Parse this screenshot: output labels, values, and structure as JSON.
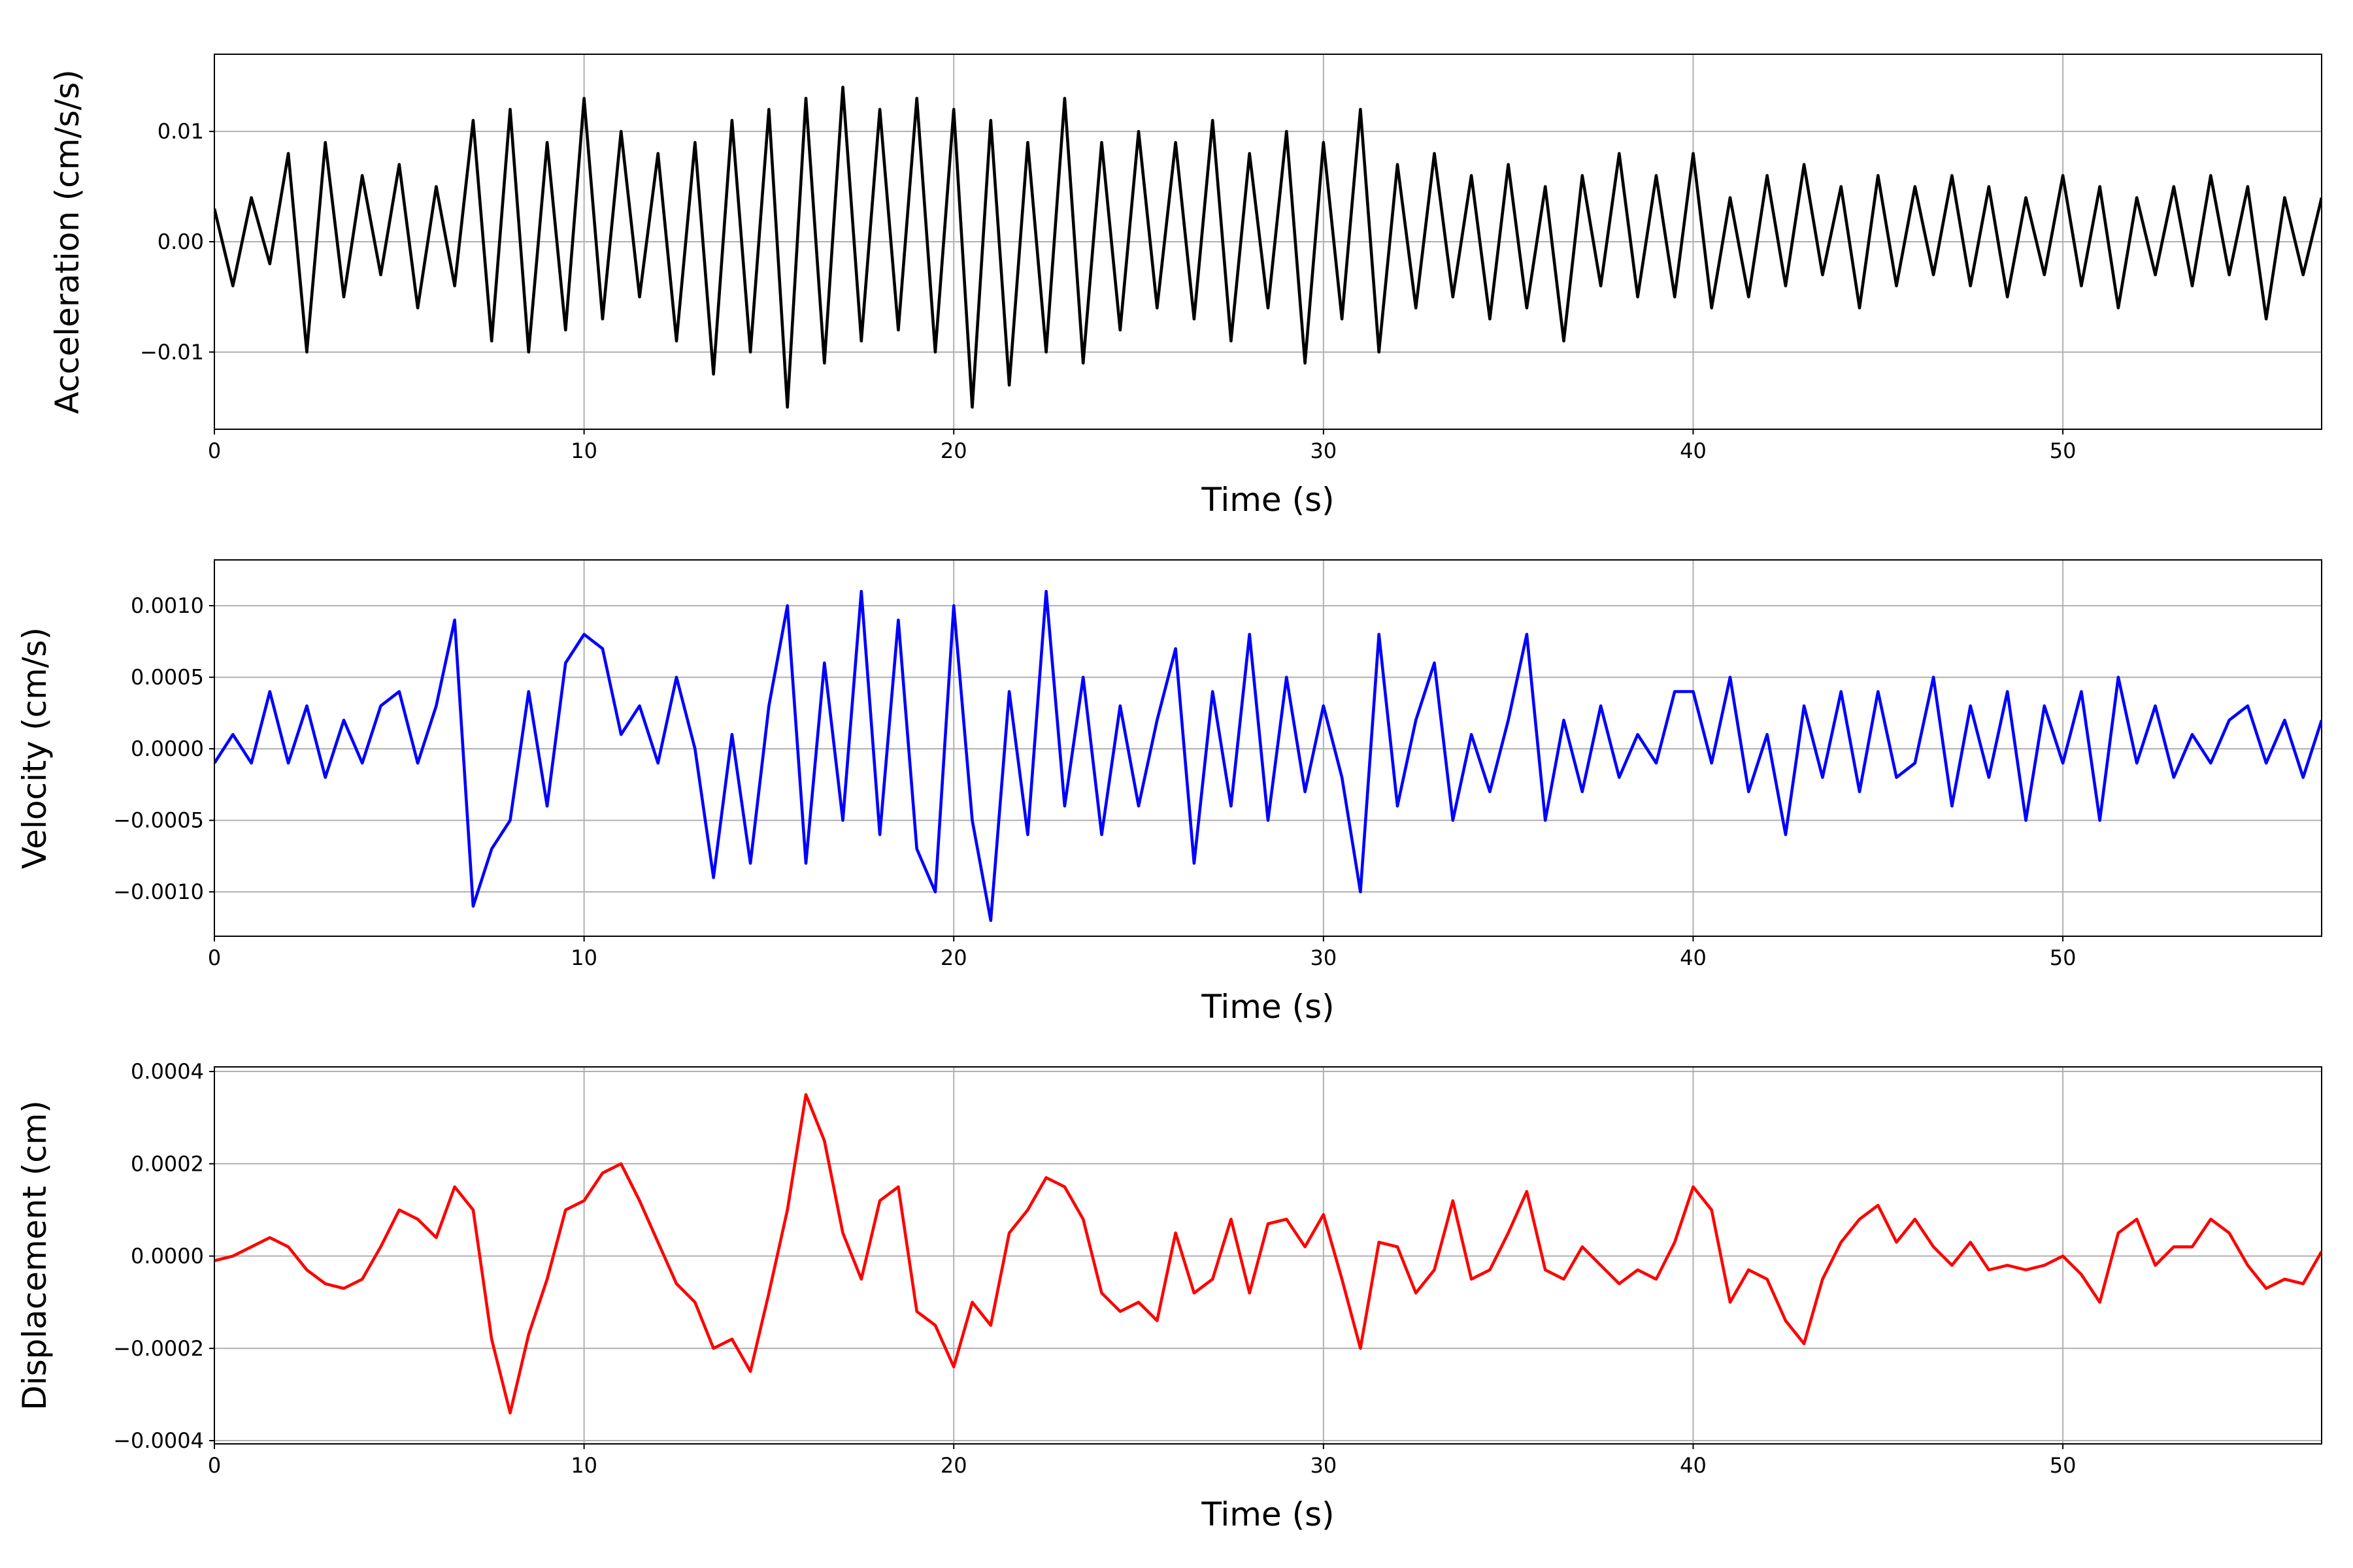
{
  "chart_data": [
    {
      "type": "line",
      "color": "#000000",
      "xlabel": "Time (s)",
      "ylabel": "Acceleration (cm/s/s)",
      "grid": true,
      "xlim": [
        0,
        57
      ],
      "xticks": [
        0,
        10,
        20,
        30,
        40,
        50
      ],
      "ylim": [
        -0.017,
        0.017
      ],
      "yticks": [
        {
          "value": -0.01,
          "label": "−0.01"
        },
        {
          "value": 0,
          "label": "0.00"
        },
        {
          "value": 0.01,
          "label": "0.01"
        }
      ],
      "x": [
        0,
        0.5,
        1,
        1.5,
        2,
        2.5,
        3,
        3.5,
        4,
        4.5,
        5,
        5.5,
        6,
        6.5,
        7,
        7.5,
        8,
        8.5,
        9,
        9.5,
        10,
        10.5,
        11,
        11.5,
        12,
        12.5,
        13,
        13.5,
        14,
        14.5,
        15,
        15.5,
        16,
        16.5,
        17,
        17.5,
        18,
        18.5,
        19,
        19.5,
        20,
        20.5,
        21,
        21.5,
        22,
        22.5,
        23,
        23.5,
        24,
        24.5,
        25,
        25.5,
        26,
        26.5,
        27,
        27.5,
        28,
        28.5,
        29,
        29.5,
        30,
        30.5,
        31,
        31.5,
        32,
        32.5,
        33,
        33.5,
        34,
        34.5,
        35,
        35.5,
        36,
        36.5,
        37,
        37.5,
        38,
        38.5,
        39,
        39.5,
        40,
        40.5,
        41,
        41.5,
        42,
        42.5,
        43,
        43.5,
        44,
        44.5,
        45,
        45.5,
        46,
        46.5,
        47,
        47.5,
        48,
        48.5,
        49,
        49.5,
        50,
        50.5,
        51,
        51.5,
        52,
        52.5,
        53,
        53.5,
        54,
        54.5,
        55,
        55.5,
        56,
        56.5,
        57
      ],
      "values": [
        0.003,
        -0.004,
        0.004,
        -0.002,
        0.008,
        -0.01,
        0.009,
        -0.005,
        0.006,
        -0.003,
        0.007,
        -0.006,
        0.005,
        -0.004,
        0.011,
        -0.009,
        0.012,
        -0.01,
        0.009,
        -0.008,
        0.013,
        -0.007,
        0.01,
        -0.005,
        0.008,
        -0.009,
        0.009,
        -0.012,
        0.011,
        -0.01,
        0.012,
        -0.015,
        0.013,
        -0.011,
        0.014,
        -0.009,
        0.012,
        -0.008,
        0.013,
        -0.01,
        0.012,
        -0.015,
        0.011,
        -0.013,
        0.009,
        -0.01,
        0.013,
        -0.011,
        0.009,
        -0.008,
        0.01,
        -0.006,
        0.009,
        -0.007,
        0.011,
        -0.009,
        0.008,
        -0.006,
        0.01,
        -0.011,
        0.009,
        -0.007,
        0.012,
        -0.01,
        0.007,
        -0.006,
        0.008,
        -0.005,
        0.006,
        -0.007,
        0.007,
        -0.006,
        0.005,
        -0.009,
        0.006,
        -0.004,
        0.008,
        -0.005,
        0.006,
        -0.005,
        0.008,
        -0.006,
        0.004,
        -0.005,
        0.006,
        -0.004,
        0.007,
        -0.003,
        0.005,
        -0.006,
        0.006,
        -0.004,
        0.005,
        -0.003,
        0.006,
        -0.004,
        0.005,
        -0.005,
        0.004,
        -0.003,
        0.006,
        -0.004,
        0.005,
        -0.006,
        0.004,
        -0.003,
        0.005,
        -0.004,
        0.006,
        -0.003,
        0.005,
        -0.007,
        0.004,
        -0.003,
        0.004
      ]
    },
    {
      "type": "line",
      "color": "#0000ff",
      "xlabel": "Time (s)",
      "ylabel": "Velocity (cm/s)",
      "grid": true,
      "xlim": [
        0,
        57
      ],
      "xticks": [
        0,
        10,
        20,
        30,
        40,
        50
      ],
      "ylim": [
        -0.00131,
        0.00132
      ],
      "yticks": [
        {
          "value": -0.001,
          "label": "−0.0010"
        },
        {
          "value": -0.0005,
          "label": "−0.0005"
        },
        {
          "value": 0,
          "label": "0.0000"
        },
        {
          "value": 0.0005,
          "label": "0.0005"
        },
        {
          "value": 0.001,
          "label": "0.0010"
        }
      ],
      "x": [
        0,
        0.5,
        1,
        1.5,
        2,
        2.5,
        3,
        3.5,
        4,
        4.5,
        5,
        5.5,
        6,
        6.5,
        7,
        7.5,
        8,
        8.5,
        9,
        9.5,
        10,
        10.5,
        11,
        11.5,
        12,
        12.5,
        13,
        13.5,
        14,
        14.5,
        15,
        15.5,
        16,
        16.5,
        17,
        17.5,
        18,
        18.5,
        19,
        19.5,
        20,
        20.5,
        21,
        21.5,
        22,
        22.5,
        23,
        23.5,
        24,
        24.5,
        25,
        25.5,
        26,
        26.5,
        27,
        27.5,
        28,
        28.5,
        29,
        29.5,
        30,
        30.5,
        31,
        31.5,
        32,
        32.5,
        33,
        33.5,
        34,
        34.5,
        35,
        35.5,
        36,
        36.5,
        37,
        37.5,
        38,
        38.5,
        39,
        39.5,
        40,
        40.5,
        41,
        41.5,
        42,
        42.5,
        43,
        43.5,
        44,
        44.5,
        45,
        45.5,
        46,
        46.5,
        47,
        47.5,
        48,
        48.5,
        49,
        49.5,
        50,
        50.5,
        51,
        51.5,
        52,
        52.5,
        53,
        53.5,
        54,
        54.5,
        55,
        55.5,
        56,
        56.5,
        57
      ],
      "values": [
        -0.0001,
        0.0001,
        -0.0001,
        0.0004,
        -0.0001,
        0.0003,
        -0.0002,
        0.0002,
        -0.0001,
        0.0003,
        0.0004,
        -0.0001,
        0.0003,
        0.0009,
        -0.0011,
        -0.0007,
        -0.0005,
        0.0004,
        -0.0004,
        0.0006,
        0.0008,
        0.0007,
        0.0001,
        0.0003,
        -0.0001,
        0.0005,
        0,
        -0.0009,
        0.0001,
        -0.0008,
        0.0003,
        0.001,
        -0.0008,
        0.0006,
        -0.0005,
        0.0011,
        -0.0006,
        0.0009,
        -0.0007,
        -0.001,
        0.001,
        -0.0005,
        -0.0012,
        0.0004,
        -0.0006,
        0.0011,
        -0.0004,
        0.0005,
        -0.0006,
        0.0003,
        -0.0004,
        0.0002,
        0.0007,
        -0.0008,
        0.0004,
        -0.0004,
        0.0008,
        -0.0005,
        0.0005,
        -0.0003,
        0.0003,
        -0.0002,
        -0.001,
        0.0008,
        -0.0004,
        0.0002,
        0.0006,
        -0.0005,
        0.0001,
        -0.0003,
        0.0002,
        0.0008,
        -0.0005,
        0.0002,
        -0.0003,
        0.0003,
        -0.0002,
        0.0001,
        -0.0001,
        0.0004,
        0.0004,
        -0.0001,
        0.0005,
        -0.0003,
        0.0001,
        -0.0006,
        0.0003,
        -0.0002,
        0.0004,
        -0.0003,
        0.0004,
        -0.0002,
        -0.0001,
        0.0005,
        -0.0004,
        0.0003,
        -0.0002,
        0.0004,
        -0.0005,
        0.0003,
        -0.0001,
        0.0004,
        -0.0005,
        0.0005,
        -0.0001,
        0.0003,
        -0.0002,
        0.0001,
        -0.0001,
        0.0002,
        0.0003,
        -0.0001,
        0.0002,
        -0.0002,
        0.0002
      ]
    },
    {
      "type": "line",
      "color": "#ff0000",
      "xlabel": "Time (s)",
      "ylabel": "Displacement (cm)",
      "grid": true,
      "xlim": [
        0,
        57
      ],
      "xticks": [
        0,
        10,
        20,
        30,
        40,
        50
      ],
      "ylim": [
        -0.000407,
        0.00041
      ],
      "yticks": [
        {
          "value": -0.0004,
          "label": "−0.0004"
        },
        {
          "value": -0.0002,
          "label": "−0.0002"
        },
        {
          "value": 0,
          "label": "0.0000"
        },
        {
          "value": 0.0002,
          "label": "0.0002"
        },
        {
          "value": 0.0004,
          "label": "0.0004"
        }
      ],
      "x": [
        0,
        0.5,
        1,
        1.5,
        2,
        2.5,
        3,
        3.5,
        4,
        4.5,
        5,
        5.5,
        6,
        6.5,
        7,
        7.5,
        8,
        8.5,
        9,
        9.5,
        10,
        10.5,
        11,
        11.5,
        12,
        12.5,
        13,
        13.5,
        14,
        14.5,
        15,
        15.5,
        16,
        16.5,
        17,
        17.5,
        18,
        18.5,
        19,
        19.5,
        20,
        20.5,
        21,
        21.5,
        22,
        22.5,
        23,
        23.5,
        24,
        24.5,
        25,
        25.5,
        26,
        26.5,
        27,
        27.5,
        28,
        28.5,
        29,
        29.5,
        30,
        30.5,
        31,
        31.5,
        32,
        32.5,
        33,
        33.5,
        34,
        34.5,
        35,
        35.5,
        36,
        36.5,
        37,
        37.5,
        38,
        38.5,
        39,
        39.5,
        40,
        40.5,
        41,
        41.5,
        42,
        42.5,
        43,
        43.5,
        44,
        44.5,
        45,
        45.5,
        46,
        46.5,
        47,
        47.5,
        48,
        48.5,
        49,
        49.5,
        50,
        50.5,
        51,
        51.5,
        52,
        52.5,
        53,
        53.5,
        54,
        54.5,
        55,
        55.5,
        56,
        56.5,
        57
      ],
      "values": [
        -1e-05,
        0,
        2e-05,
        4e-05,
        2e-05,
        -3e-05,
        -6e-05,
        -7e-05,
        -5e-05,
        2e-05,
        0.0001,
        8e-05,
        4e-05,
        0.00015,
        0.0001,
        -0.00018,
        -0.00034,
        -0.00017,
        -5e-05,
        0.0001,
        0.00012,
        0.00018,
        0.0002,
        0.00012,
        3e-05,
        -6e-05,
        -0.0001,
        -0.0002,
        -0.00018,
        -0.00025,
        -8e-05,
        0.0001,
        0.00035,
        0.00025,
        5e-05,
        -5e-05,
        0.00012,
        0.00015,
        -0.00012,
        -0.00015,
        -0.00024,
        -0.0001,
        -0.00015,
        5e-05,
        0.0001,
        0.00017,
        0.00015,
        8e-05,
        -8e-05,
        -0.00012,
        -0.0001,
        -0.00014,
        5e-05,
        -8e-05,
        -5e-05,
        8e-05,
        -8e-05,
        7e-05,
        8e-05,
        2e-05,
        9e-05,
        -5e-05,
        -0.0002,
        3e-05,
        2e-05,
        -8e-05,
        -3e-05,
        0.00012,
        -5e-05,
        -3e-05,
        5e-05,
        0.00014,
        -3e-05,
        -5e-05,
        2e-05,
        -2e-05,
        -6e-05,
        -3e-05,
        -5e-05,
        3e-05,
        0.00015,
        0.0001,
        -0.0001,
        -3e-05,
        -5e-05,
        -0.00014,
        -0.00019,
        -5e-05,
        3e-05,
        8e-05,
        0.00011,
        3e-05,
        8e-05,
        2e-05,
        -2e-05,
        3e-05,
        -3e-05,
        -2e-05,
        -3e-05,
        -2e-05,
        0,
        -4e-05,
        -0.0001,
        5e-05,
        8e-05,
        -2e-05,
        2e-05,
        2e-05,
        8e-05,
        5e-05,
        -2e-05,
        -7e-05,
        -5e-05,
        -6e-05,
        1e-05
      ]
    }
  ]
}
